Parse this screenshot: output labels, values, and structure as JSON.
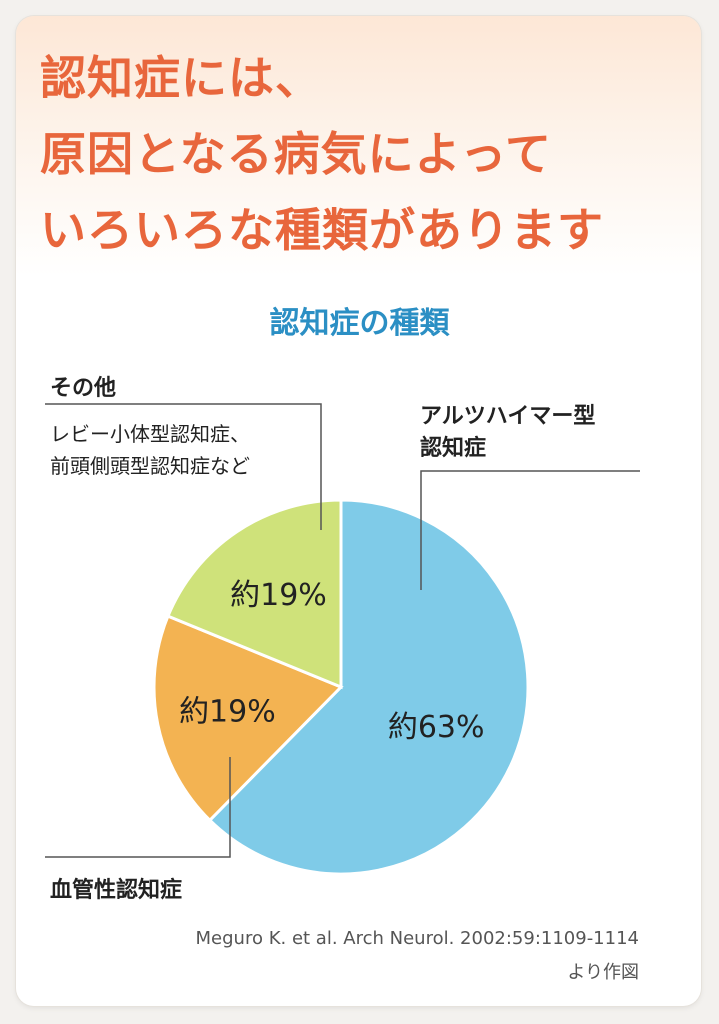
{
  "headline": {
    "line1": "認知症には、",
    "line2": "原因となる病気によって",
    "line3": "いろいろな種類があります"
  },
  "chart_data": {
    "type": "pie",
    "title": "認知症の種類",
    "slices": [
      {
        "name": "アルツハイマー型認知症",
        "value": 63,
        "label": "約63%",
        "color": "#7fcbe8"
      },
      {
        "name": "血管性認知症",
        "value": 19,
        "label": "約19%",
        "color": "#f3b352"
      },
      {
        "name": "その他",
        "value": 19,
        "label": "約19%",
        "color": "#cfe27a"
      }
    ],
    "annotations": {
      "alzheimer_line1": "アルツハイマー型",
      "alzheimer_line2": "認知症",
      "vascular": "血管性認知症",
      "other": "その他",
      "other_detail1": "レビー小体型認知症、",
      "other_detail2": "前頭側頭型認知症など"
    }
  },
  "citation": {
    "line1": "Meguro K. et al. Arch Neurol. 2002:59:1109-1114",
    "line2": "より作図"
  }
}
